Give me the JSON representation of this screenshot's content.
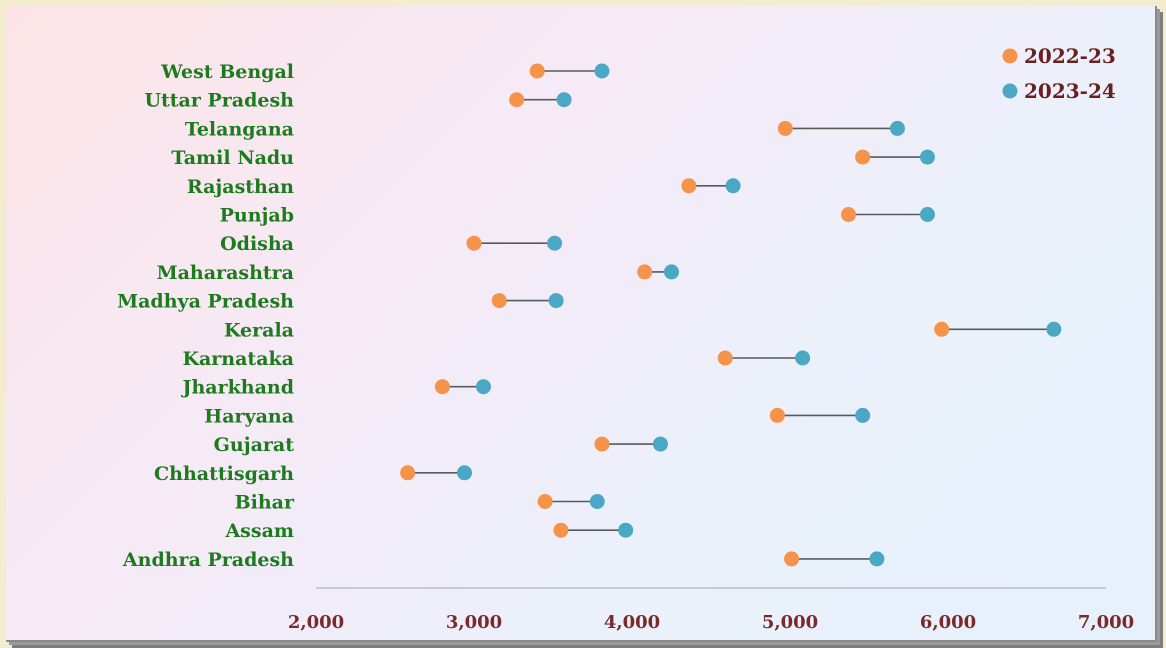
{
  "chart_data": {
    "type": "dumbbell",
    "categories": [
      "West Bengal",
      "Uttar Pradesh",
      "Telangana",
      "Tamil Nadu",
      "Rajasthan",
      "Punjab",
      "Odisha",
      "Maharashtra",
      "Madhya Pradesh",
      "Kerala",
      "Karnataka",
      "Jharkhand",
      "Haryana",
      "Gujarat",
      "Chhattisgarh",
      "Bihar",
      "Assam",
      "Andhra Pradesh"
    ],
    "series": [
      {
        "name": "2022-23",
        "color": "#f5934a",
        "values": [
          3400,
          3270,
          4970,
          5460,
          4360,
          5370,
          3000,
          4080,
          3160,
          5960,
          4590,
          2800,
          4920,
          3810,
          2580,
          3450,
          3550,
          5010
        ]
      },
      {
        "name": "2023-24",
        "color": "#4aa8c4",
        "values": [
          3810,
          3570,
          5680,
          5870,
          4640,
          5870,
          3510,
          4250,
          3520,
          6670,
          5080,
          3060,
          5460,
          4180,
          2940,
          3780,
          3960,
          5550
        ]
      }
    ],
    "xlim": [
      2000,
      7000
    ],
    "xticks": [
      "2,000",
      "3,000",
      "4,000",
      "5,000",
      "6,000",
      "7,000"
    ],
    "xtick_values": [
      2000,
      3000,
      4000,
      5000,
      6000,
      7000
    ],
    "connector_color": "#555a5c",
    "legend_position": "top-right"
  }
}
